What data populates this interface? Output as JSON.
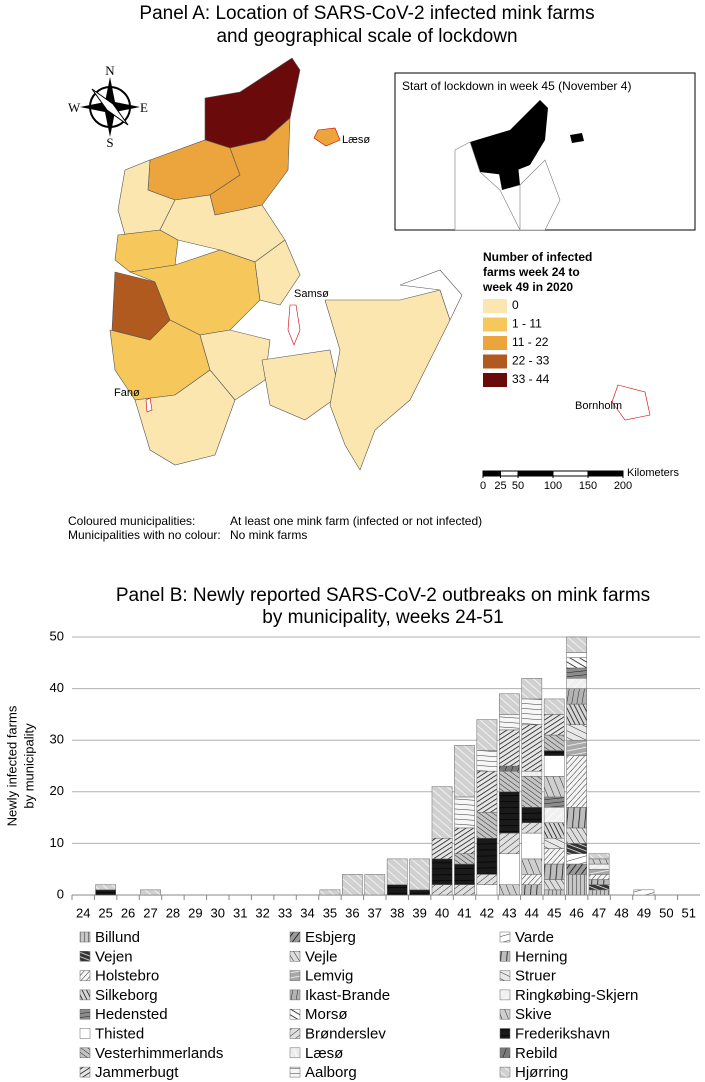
{
  "panel_a": {
    "title": [
      "Panel A: Location of SARS-CoV-2 infected mink farms",
      "and geographical scale of lockdown"
    ],
    "compass": {
      "n": "N",
      "s": "S",
      "e": "E",
      "w": "W"
    },
    "inset_title": "Start of lockdown in week 45 (November 4)",
    "places": {
      "laeso": "Læsø",
      "samso": "Samsø",
      "fano": "Fanø",
      "bornholm": "Bornholm"
    },
    "legend": {
      "title": [
        "Number of infected",
        "farms week 24 to",
        "week 49 in 2020"
      ],
      "classes": [
        {
          "label": "0",
          "color": "#fbe6b0"
        },
        {
          "label": "1 - 11",
          "color": "#f6c85c"
        },
        {
          "label": "11 - 22",
          "color": "#eba53c"
        },
        {
          "label": "22 - 33",
          "color": "#b05a20"
        },
        {
          "label": "33 - 44",
          "color": "#6b0a0a"
        }
      ]
    },
    "scale": {
      "unit": "Kilometers",
      "ticks": [
        0,
        25,
        50,
        100,
        150,
        200
      ]
    },
    "notes": [
      [
        "Coloured municipalities:",
        "At least one mink farm (infected or not infected)"
      ],
      [
        "Municipalities with no colour:",
        "No mink farms"
      ]
    ]
  },
  "chart_data": {
    "type": "bar",
    "stacked": true,
    "title": [
      "Panel B: Newly reported SARS-CoV-2 outbreaks on mink farms",
      "by municipality, weeks 24-51"
    ],
    "y_label": [
      "Newly infected farms",
      "by municipality"
    ],
    "categories": [
      24,
      25,
      26,
      27,
      28,
      29,
      30,
      31,
      32,
      33,
      34,
      35,
      36,
      37,
      38,
      39,
      40,
      41,
      42,
      43,
      44,
      45,
      46,
      47,
      48,
      49,
      50,
      51
    ],
    "ylim": [
      0,
      50
    ],
    "yticks": [
      0,
      10,
      20,
      30,
      40,
      50
    ],
    "grid": true,
    "series": [
      {
        "name": "Billund",
        "color": "#c8c8c8",
        "values": [
          0,
          0,
          0,
          0,
          0,
          0,
          0,
          0,
          0,
          0,
          0,
          0,
          0,
          0,
          0,
          0,
          0,
          0,
          0,
          0,
          0,
          1,
          4,
          1,
          0,
          0,
          0,
          0
        ]
      },
      {
        "name": "Esbjerg",
        "color": "#9a9a9a",
        "values": [
          0,
          0,
          0,
          0,
          0,
          0,
          0,
          0,
          0,
          0,
          0,
          0,
          0,
          0,
          0,
          0,
          0,
          0,
          0,
          0,
          0,
          0,
          2,
          0,
          0,
          0,
          0,
          0
        ]
      },
      {
        "name": "Varde",
        "color": "#ffffff",
        "values": [
          0,
          0,
          0,
          0,
          0,
          0,
          0,
          0,
          0,
          0,
          0,
          0,
          0,
          0,
          0,
          0,
          0,
          0,
          0,
          0,
          0,
          0,
          2,
          0,
          0,
          1,
          0,
          0
        ]
      },
      {
        "name": "Vejen",
        "color": "#333333",
        "values": [
          0,
          0,
          0,
          0,
          0,
          0,
          0,
          0,
          0,
          0,
          0,
          0,
          0,
          0,
          0,
          0,
          0,
          0,
          0,
          0,
          0,
          0,
          2,
          1,
          0,
          0,
          0,
          0
        ]
      },
      {
        "name": "Vejle",
        "color": "#dddddd",
        "values": [
          0,
          0,
          0,
          0,
          0,
          0,
          0,
          0,
          0,
          0,
          0,
          0,
          0,
          0,
          0,
          0,
          0,
          0,
          0,
          0,
          0,
          2,
          3,
          0,
          0,
          0,
          0,
          0
        ]
      },
      {
        "name": "Herning",
        "color": "#bdbdbd",
        "values": [
          0,
          0,
          0,
          0,
          0,
          0,
          0,
          0,
          0,
          0,
          0,
          0,
          0,
          0,
          0,
          0,
          0,
          0,
          0,
          0,
          2,
          3,
          4,
          1,
          0,
          0,
          0,
          0
        ]
      },
      {
        "name": "Holstebro",
        "color": "#f4f4f4",
        "values": [
          0,
          0,
          0,
          0,
          0,
          0,
          0,
          0,
          0,
          0,
          0,
          0,
          0,
          0,
          0,
          0,
          0,
          0,
          0,
          0,
          2,
          3,
          10,
          1,
          0,
          0,
          0,
          0
        ]
      },
      {
        "name": "Lemvig",
        "color": "#a8a8a8",
        "values": [
          0,
          0,
          0,
          0,
          0,
          0,
          0,
          0,
          0,
          0,
          0,
          0,
          0,
          0,
          0,
          0,
          0,
          0,
          0,
          0,
          0,
          0,
          3,
          1,
          0,
          0,
          0,
          0
        ]
      },
      {
        "name": "Struer",
        "color": "#e8e8e8",
        "values": [
          0,
          0,
          0,
          0,
          0,
          0,
          0,
          0,
          0,
          0,
          0,
          0,
          0,
          0,
          0,
          0,
          0,
          0,
          0,
          0,
          0,
          2,
          3,
          0,
          0,
          0,
          0,
          0
        ]
      },
      {
        "name": "Silkeborg",
        "color": "#d6d6d6",
        "values": [
          0,
          0,
          0,
          0,
          0,
          0,
          0,
          0,
          0,
          0,
          0,
          0,
          0,
          0,
          0,
          0,
          0,
          0,
          0,
          0,
          0,
          3,
          4,
          0,
          0,
          0,
          0,
          0
        ]
      },
      {
        "name": "Ikast-Brande",
        "color": "#b4b4b4",
        "values": [
          0,
          0,
          0,
          0,
          0,
          0,
          0,
          0,
          0,
          0,
          0,
          0,
          0,
          0,
          0,
          0,
          0,
          0,
          0,
          0,
          0,
          0,
          3,
          0,
          0,
          0,
          0,
          0
        ]
      },
      {
        "name": "Ringkøbing-Skjern",
        "color": "#f0f0f0",
        "values": [
          0,
          0,
          0,
          0,
          0,
          0,
          0,
          0,
          0,
          0,
          0,
          0,
          0,
          0,
          0,
          0,
          0,
          0,
          0,
          0,
          0,
          3,
          2,
          1,
          0,
          0,
          0,
          0
        ]
      },
      {
        "name": "Hedensted",
        "color": "#8c8c8c",
        "values": [
          0,
          0,
          0,
          0,
          0,
          0,
          0,
          0,
          0,
          0,
          0,
          0,
          0,
          0,
          0,
          0,
          0,
          0,
          0,
          0,
          0,
          2,
          2,
          0,
          0,
          0,
          0,
          0
        ]
      },
      {
        "name": "Morsø",
        "color": "#fafafa",
        "values": [
          0,
          0,
          0,
          0,
          0,
          0,
          0,
          0,
          0,
          0,
          0,
          0,
          0,
          0,
          0,
          0,
          0,
          0,
          0,
          0,
          0,
          0,
          2,
          0,
          0,
          0,
          0,
          0
        ]
      },
      {
        "name": "Skive",
        "color": "#cfcfcf",
        "values": [
          0,
          0,
          0,
          0,
          0,
          0,
          0,
          0,
          0,
          0,
          0,
          0,
          0,
          0,
          0,
          0,
          0,
          0,
          0,
          2,
          3,
          4,
          0,
          1,
          0,
          0,
          0,
          0
        ]
      },
      {
        "name": "Thisted",
        "color": "#ffffff",
        "values": [
          0,
          0,
          0,
          0,
          0,
          0,
          0,
          0,
          0,
          0,
          0,
          0,
          0,
          0,
          0,
          0,
          0,
          0,
          2,
          6,
          5,
          4,
          1,
          0,
          0,
          0,
          0,
          0
        ]
      },
      {
        "name": "Brønderslev",
        "color": "#e0e0e0",
        "values": [
          0,
          0,
          0,
          0,
          0,
          0,
          0,
          0,
          0,
          0,
          0,
          0,
          0,
          0,
          0,
          0,
          2,
          2,
          2,
          4,
          2,
          0,
          0,
          0,
          0,
          0,
          0,
          0
        ]
      },
      {
        "name": "Frederikshavn",
        "color": "#1a1a1a",
        "values": [
          0,
          1,
          0,
          0,
          0,
          0,
          0,
          0,
          0,
          0,
          0,
          0,
          0,
          0,
          2,
          1,
          5,
          4,
          7,
          8,
          3,
          1,
          0,
          0,
          0,
          0,
          0,
          0
        ]
      },
      {
        "name": "Vesterhimmerlands",
        "color": "#c4c4c4",
        "values": [
          0,
          0,
          0,
          0,
          0,
          0,
          0,
          0,
          0,
          0,
          0,
          0,
          0,
          0,
          0,
          0,
          0,
          2,
          5,
          4,
          6,
          3,
          0,
          0,
          0,
          0,
          0,
          0
        ]
      },
      {
        "name": "Læsø",
        "color": "#ececec",
        "values": [
          0,
          0,
          0,
          0,
          0,
          0,
          0,
          0,
          0,
          0,
          0,
          0,
          0,
          0,
          0,
          0,
          0,
          0,
          0,
          0,
          1,
          0,
          0,
          0,
          0,
          0,
          0,
          0
        ]
      },
      {
        "name": "Rebild",
        "color": "#7a7a7a",
        "values": [
          0,
          0,
          0,
          0,
          0,
          0,
          0,
          0,
          0,
          0,
          0,
          0,
          0,
          0,
          0,
          0,
          0,
          0,
          0,
          1,
          0,
          0,
          0,
          0,
          0,
          0,
          0,
          0
        ]
      },
      {
        "name": "Jammerbugt",
        "color": "#e6e6e6",
        "values": [
          0,
          0,
          0,
          0,
          0,
          0,
          0,
          0,
          0,
          0,
          0,
          0,
          0,
          0,
          0,
          0,
          4,
          5,
          8,
          7,
          9,
          4,
          0,
          0,
          0,
          0,
          0,
          0
        ]
      },
      {
        "name": "Aalborg",
        "color": "#f7f7f7",
        "values": [
          0,
          0,
          0,
          0,
          0,
          0,
          0,
          0,
          0,
          0,
          0,
          0,
          0,
          0,
          0,
          0,
          0,
          6,
          4,
          3,
          5,
          0,
          0,
          0,
          0,
          0,
          0,
          0
        ]
      },
      {
        "name": "Hjørring",
        "color": "#d0d0d0",
        "values": [
          0,
          1,
          0,
          1,
          0,
          0,
          0,
          0,
          0,
          0,
          0,
          1,
          4,
          4,
          5,
          6,
          10,
          10,
          6,
          4,
          4,
          3,
          3,
          1,
          0,
          0,
          0,
          0
        ]
      }
    ]
  }
}
